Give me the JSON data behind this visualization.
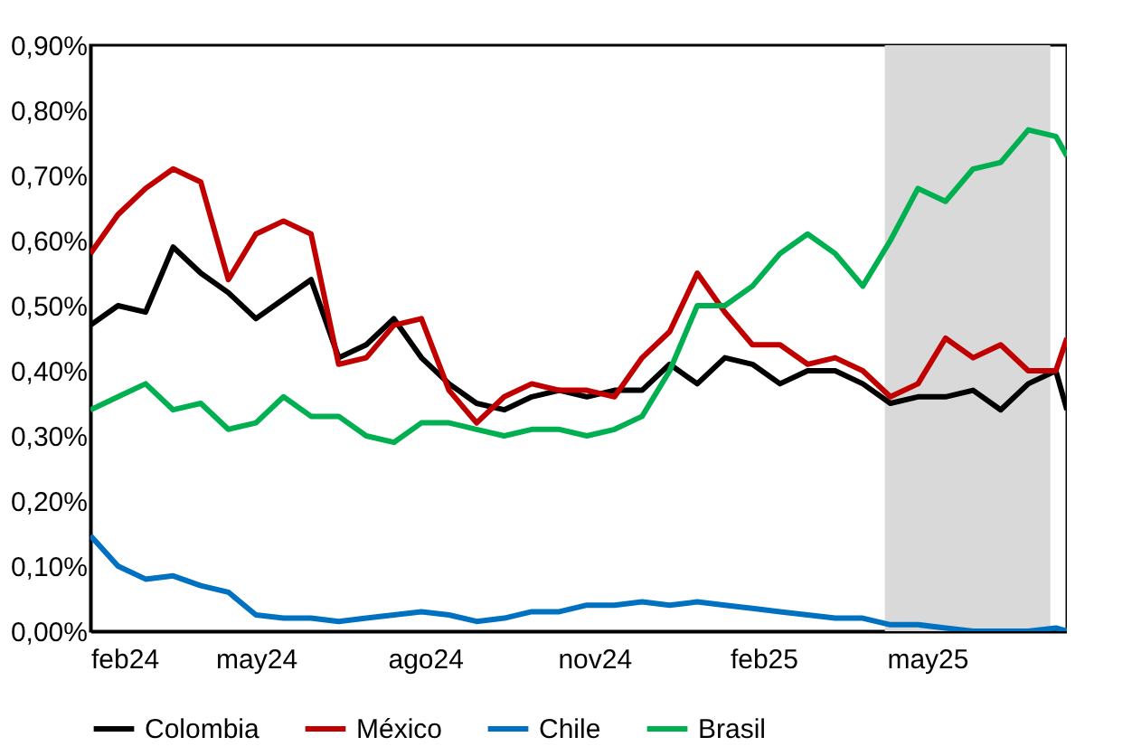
{
  "chart_data": {
    "type": "line",
    "x": [
      "2024-02-01",
      "2024-02-16",
      "2024-03-02",
      "2024-03-17",
      "2024-04-01",
      "2024-04-16",
      "2024-05-01",
      "2024-05-16",
      "2024-05-31",
      "2024-06-15",
      "2024-06-30",
      "2024-07-15",
      "2024-07-30",
      "2024-08-14",
      "2024-08-29",
      "2024-09-13",
      "2024-09-28",
      "2024-10-13",
      "2024-10-28",
      "2024-11-12",
      "2024-11-27",
      "2024-12-12",
      "2024-12-27",
      "2025-01-11",
      "2025-01-26",
      "2025-02-10",
      "2025-02-25",
      "2025-03-12",
      "2025-03-27",
      "2025-04-11",
      "2025-04-26",
      "2025-05-11",
      "2025-05-26",
      "2025-06-10",
      "2025-06-25",
      "2025-07-10",
      "2025-07-16"
    ],
    "series": [
      {
        "name": "Colombia",
        "color": "#000000",
        "values": [
          0.47,
          0.5,
          0.49,
          0.59,
          0.55,
          0.52,
          0.48,
          0.51,
          0.54,
          0.42,
          0.44,
          0.48,
          0.42,
          0.38,
          0.35,
          0.34,
          0.36,
          0.37,
          0.36,
          0.37,
          0.37,
          0.41,
          0.38,
          0.42,
          0.41,
          0.38,
          0.4,
          0.4,
          0.38,
          0.35,
          0.36,
          0.36,
          0.37,
          0.34,
          0.38,
          0.4,
          0.34
        ]
      },
      {
        "name": "México",
        "color": "#c00000",
        "values": [
          0.58,
          0.64,
          0.68,
          0.71,
          0.69,
          0.54,
          0.61,
          0.63,
          0.61,
          0.41,
          0.42,
          0.47,
          0.48,
          0.37,
          0.32,
          0.36,
          0.38,
          0.37,
          0.37,
          0.36,
          0.42,
          0.46,
          0.55,
          0.49,
          0.44,
          0.44,
          0.41,
          0.42,
          0.4,
          0.36,
          0.38,
          0.45,
          0.42,
          0.44,
          0.4,
          0.4,
          0.45
        ]
      },
      {
        "name": "Chile",
        "color": "#0070c0",
        "values": [
          0.147,
          0.1,
          0.08,
          0.085,
          0.07,
          0.06,
          0.025,
          0.02,
          0.02,
          0.015,
          0.02,
          0.025,
          0.03,
          0.025,
          0.015,
          0.02,
          0.03,
          0.03,
          0.04,
          0.04,
          0.045,
          0.04,
          0.045,
          0.04,
          0.035,
          0.03,
          0.025,
          0.02,
          0.02,
          0.01,
          0.01,
          0.005,
          0.0,
          0.0,
          0.0,
          0.005,
          0.0
        ]
      },
      {
        "name": "Brasil",
        "color": "#00b050",
        "values": [
          0.34,
          0.36,
          0.38,
          0.34,
          0.35,
          0.31,
          0.32,
          0.36,
          0.33,
          0.33,
          0.3,
          0.29,
          0.32,
          0.32,
          0.31,
          0.3,
          0.31,
          0.31,
          0.3,
          0.31,
          0.33,
          0.4,
          0.5,
          0.5,
          0.53,
          0.58,
          0.61,
          0.58,
          0.53,
          0.6,
          0.68,
          0.66,
          0.71,
          0.72,
          0.77,
          0.76,
          0.73
        ]
      }
    ],
    "xlim": [
      "2024-02-01",
      "2025-07-16"
    ],
    "xticks": [
      {
        "value": "2024-02-01",
        "label": "feb24"
      },
      {
        "value": "2024-05-01",
        "label": "may24"
      },
      {
        "value": "2024-08-01",
        "label": "ago24"
      },
      {
        "value": "2024-11-01",
        "label": "nov24"
      },
      {
        "value": "2025-02-01",
        "label": "feb25"
      },
      {
        "value": "2025-05-01",
        "label": "may25"
      }
    ],
    "ylim": [
      0,
      0.9
    ],
    "yticks": [
      {
        "value": 0,
        "label": "0,00%"
      },
      {
        "value": 0.1,
        "label": "0,10%"
      },
      {
        "value": 0.2,
        "label": "0,20%"
      },
      {
        "value": 0.3,
        "label": "0,30%"
      },
      {
        "value": 0.4,
        "label": "0,40%"
      },
      {
        "value": 0.5,
        "label": "0,50%"
      },
      {
        "value": 0.6,
        "label": "0,60%"
      },
      {
        "value": 0.7,
        "label": "0,70%"
      },
      {
        "value": 0.8,
        "label": "0,80%"
      },
      {
        "value": 0.9,
        "label": "0,90%"
      }
    ],
    "bands": [
      {
        "axis": "x",
        "from": "2025-04-08",
        "to": "2025-07-07",
        "color": "#d9d9d9"
      }
    ],
    "grid": false,
    "legend": "bottom"
  }
}
